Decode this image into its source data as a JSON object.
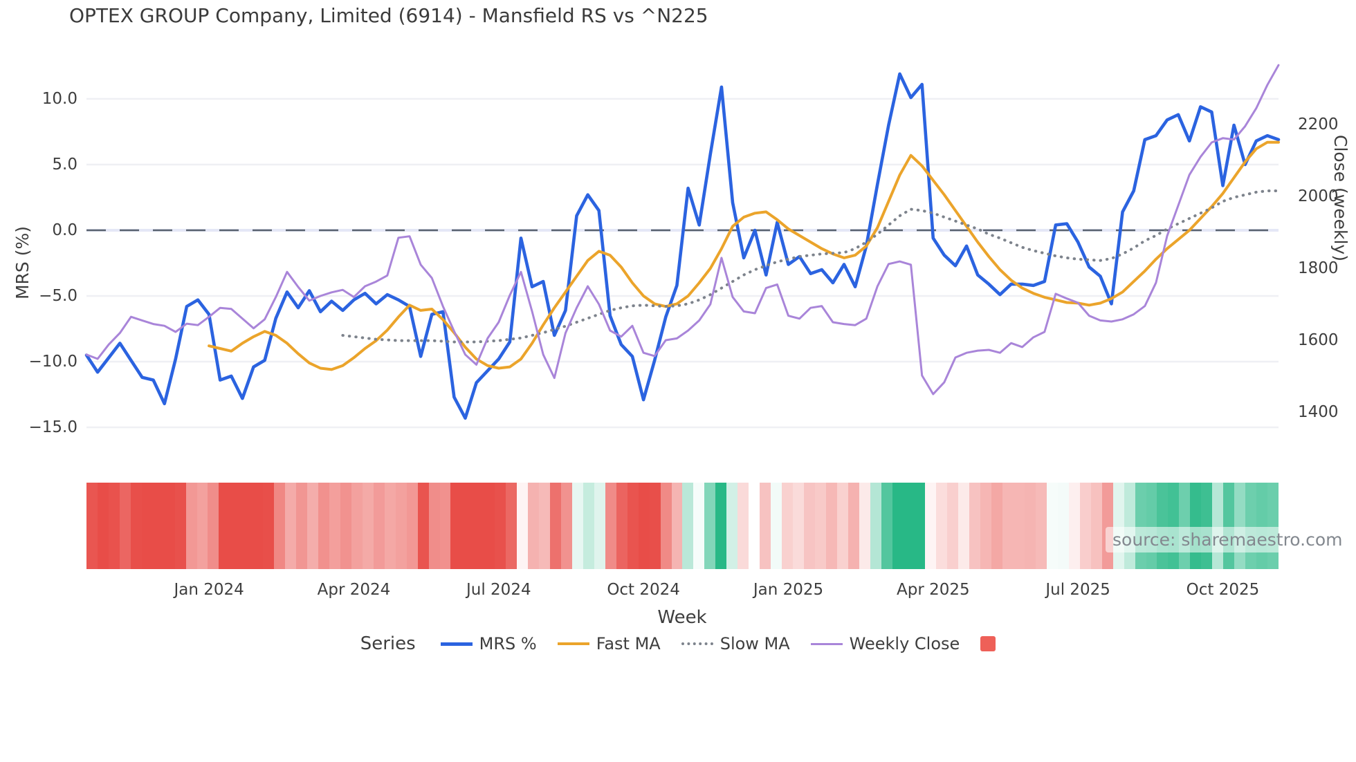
{
  "title": "OPTEX GROUP Company, Limited (6914) - Mansfield RS vs ^N225",
  "axes": {
    "left": {
      "label": "MRS (%)",
      "ticks": [
        "10.0",
        "5.0",
        "0.0",
        "−5.0",
        "−10.0",
        "−15.0"
      ],
      "tick_values": [
        10,
        5,
        0,
        -5,
        -10,
        -15
      ]
    },
    "right": {
      "label": "Close (weekly)",
      "ticks": [
        "2200",
        "2000",
        "1800",
        "1600",
        "1400"
      ],
      "tick_values": [
        2200,
        2000,
        1800,
        1600,
        1400
      ]
    },
    "x": {
      "label": "Week",
      "ticks": [
        "Jan 2024",
        "Apr 2024",
        "Jul 2024",
        "Oct 2024",
        "Jan 2025",
        "Apr 2025",
        "Jul 2025",
        "Oct 2025"
      ],
      "tick_week_index": [
        11,
        24,
        37,
        50,
        63,
        76,
        89,
        102
      ]
    }
  },
  "legend": {
    "title": "Series",
    "items": [
      {
        "label": "MRS %",
        "type": "line",
        "color": "#2b63e0",
        "width": 5
      },
      {
        "label": "Fast MA",
        "type": "line",
        "color": "#eba42b",
        "width": 4
      },
      {
        "label": "Slow MA",
        "type": "dotted",
        "color": "#7d838c",
        "width": 4
      },
      {
        "label": "Weekly Close",
        "type": "line",
        "color": "#a985d9",
        "width": 3
      }
    ],
    "extra_swatch_color": "#ee6058"
  },
  "source": "source: sharemaestro.com",
  "chart_data": {
    "type": "line",
    "x_axis": "weekly, Oct 2023 - Nov 2025 (108 weeks)",
    "left_ylim": [
      -15,
      10
    ],
    "right_ylim": [
      1400,
      2200
    ],
    "zero_line": 0,
    "grid": true,
    "legend_position": "bottom",
    "series": [
      {
        "name": "MRS %",
        "axis": "left",
        "color": "#2b63e0",
        "style": "solid",
        "values": [
          -9.5,
          -10.8,
          -9.7,
          -8.6,
          -9.9,
          -11.2,
          -11.4,
          -13.2,
          -9.8,
          -5.8,
          -5.3,
          -6.4,
          -11.4,
          -11.1,
          -12.8,
          -10.4,
          -9.9,
          -6.7,
          -4.7,
          -5.9,
          -4.6,
          -6.2,
          -5.4,
          -6.1,
          -5.3,
          -4.8,
          -5.6,
          -4.9,
          -5.3,
          -5.8,
          -9.6,
          -6.4,
          -6.2,
          -12.7,
          -14.3,
          -11.6,
          -10.7,
          -9.8,
          -8.5,
          -0.6,
          -4.3,
          -3.9,
          -8.0,
          -6.1,
          1.1,
          2.7,
          1.5,
          -6.5,
          -8.7,
          -9.6,
          -12.9,
          -9.9,
          -6.6,
          -4.2,
          3.2,
          0.4,
          5.8,
          10.9,
          2.1,
          -2.1,
          0.0,
          -3.4,
          0.6,
          -2.6,
          -2.0,
          -3.3,
          -3.0,
          -4.0,
          -2.6,
          -4.3,
          -1.2,
          3.5,
          8.0,
          11.9,
          10.1,
          11.1,
          -0.6,
          -1.9,
          -2.7,
          -1.2,
          -3.4,
          -4.1,
          -4.9,
          -4.1,
          -4.1,
          -4.2,
          -3.9,
          0.4,
          0.5,
          -0.9,
          -2.8,
          -3.5,
          -5.6,
          1.4,
          3.0,
          6.9,
          7.2,
          8.4,
          8.8,
          6.8,
          9.4,
          9.0,
          3.4,
          8.0,
          5.0,
          6.8,
          7.2,
          6.9
        ]
      },
      {
        "name": "Fast MA",
        "axis": "left",
        "color": "#eba42b",
        "style": "solid",
        "values": [
          null,
          null,
          null,
          null,
          null,
          null,
          null,
          null,
          null,
          null,
          null,
          -8.8,
          -9.0,
          -9.2,
          -8.6,
          -8.1,
          -7.7,
          -8.0,
          -8.6,
          -9.4,
          -10.1,
          -10.5,
          -10.6,
          -10.3,
          -9.7,
          -9.0,
          -8.4,
          -7.6,
          -6.6,
          -5.7,
          -6.1,
          -6.0,
          -6.8,
          -7.8,
          -8.9,
          -9.8,
          -10.3,
          -10.5,
          -10.4,
          -9.8,
          -8.6,
          -7.2,
          -5.9,
          -4.7,
          -3.5,
          -2.3,
          -1.6,
          -1.9,
          -2.8,
          -4.0,
          -5.0,
          -5.6,
          -5.8,
          -5.6,
          -5.0,
          -4.0,
          -2.9,
          -1.4,
          0.3,
          1.0,
          1.3,
          1.4,
          0.8,
          0.1,
          -0.4,
          -0.9,
          -1.4,
          -1.8,
          -2.1,
          -1.9,
          -1.2,
          0.2,
          2.2,
          4.2,
          5.7,
          4.9,
          3.8,
          2.7,
          1.5,
          0.3,
          -0.9,
          -2.0,
          -3.0,
          -3.8,
          -4.4,
          -4.8,
          -5.1,
          -5.3,
          -5.5,
          -5.55,
          -5.7,
          -5.55,
          -5.2,
          -4.7,
          -3.9,
          -3.1,
          -2.2,
          -1.4,
          -0.7,
          0.0,
          0.9,
          1.8,
          2.8,
          4.0,
          5.2,
          6.2,
          6.7,
          6.7
        ]
      },
      {
        "name": "Slow MA",
        "axis": "left",
        "color": "#7d838c",
        "style": "dotted",
        "values": [
          null,
          null,
          null,
          null,
          null,
          null,
          null,
          null,
          null,
          null,
          null,
          null,
          null,
          null,
          null,
          null,
          null,
          null,
          null,
          null,
          null,
          null,
          null,
          -8.0,
          -8.1,
          -8.2,
          -8.3,
          -8.35,
          -8.4,
          -8.4,
          -8.4,
          -8.4,
          -8.45,
          -8.5,
          -8.5,
          -8.5,
          -8.45,
          -8.4,
          -8.3,
          -8.2,
          -8.0,
          -7.8,
          -7.55,
          -7.3,
          -7.0,
          -6.7,
          -6.4,
          -6.1,
          -5.9,
          -5.75,
          -5.7,
          -5.75,
          -5.8,
          -5.75,
          -5.6,
          -5.3,
          -4.9,
          -4.4,
          -3.9,
          -3.4,
          -3.0,
          -2.7,
          -2.4,
          -2.2,
          -2.0,
          -1.9,
          -1.8,
          -1.75,
          -1.7,
          -1.4,
          -0.9,
          -0.3,
          0.4,
          1.1,
          1.6,
          1.5,
          1.3,
          1.0,
          0.7,
          0.4,
          0.1,
          -0.3,
          -0.6,
          -0.95,
          -1.3,
          -1.55,
          -1.75,
          -1.95,
          -2.1,
          -2.2,
          -2.25,
          -2.3,
          -2.15,
          -1.8,
          -1.35,
          -0.8,
          -0.4,
          0.1,
          0.5,
          0.9,
          1.3,
          1.7,
          2.2,
          2.5,
          2.7,
          2.9,
          3.0,
          3.0
        ]
      },
      {
        "name": "Weekly Close",
        "axis": "right",
        "color": "#a985d9",
        "style": "solid",
        "values": [
          1560,
          1548,
          1588,
          1620,
          1665,
          1655,
          1645,
          1640,
          1623,
          1646,
          1642,
          1665,
          1690,
          1687,
          1660,
          1633,
          1658,
          1720,
          1790,
          1748,
          1710,
          1723,
          1733,
          1740,
          1720,
          1750,
          1763,
          1780,
          1885,
          1889,
          1810,
          1773,
          1694,
          1625,
          1560,
          1532,
          1605,
          1650,
          1725,
          1790,
          1680,
          1560,
          1495,
          1620,
          1690,
          1750,
          1700,
          1627,
          1610,
          1640,
          1565,
          1556,
          1600,
          1605,
          1627,
          1655,
          1700,
          1829,
          1720,
          1680,
          1675,
          1745,
          1755,
          1668,
          1660,
          1690,
          1695,
          1650,
          1645,
          1642,
          1660,
          1750,
          1812,
          1819,
          1810,
          1502,
          1450,
          1483,
          1552,
          1565,
          1571,
          1573,
          1565,
          1592,
          1581,
          1608,
          1623,
          1729,
          1716,
          1704,
          1668,
          1655,
          1652,
          1658,
          1672,
          1695,
          1760,
          1890,
          1975,
          2060,
          2110,
          2150,
          2162,
          2158,
          2195,
          2245,
          2310,
          2365
        ]
      }
    ],
    "heatmap_strip": {
      "derived_from": "MRS %",
      "negative_color": "#e84d48",
      "positive_color": "#28b886",
      "neutral_color": "#ffffff",
      "saturation_at_abs_value": 10
    }
  }
}
